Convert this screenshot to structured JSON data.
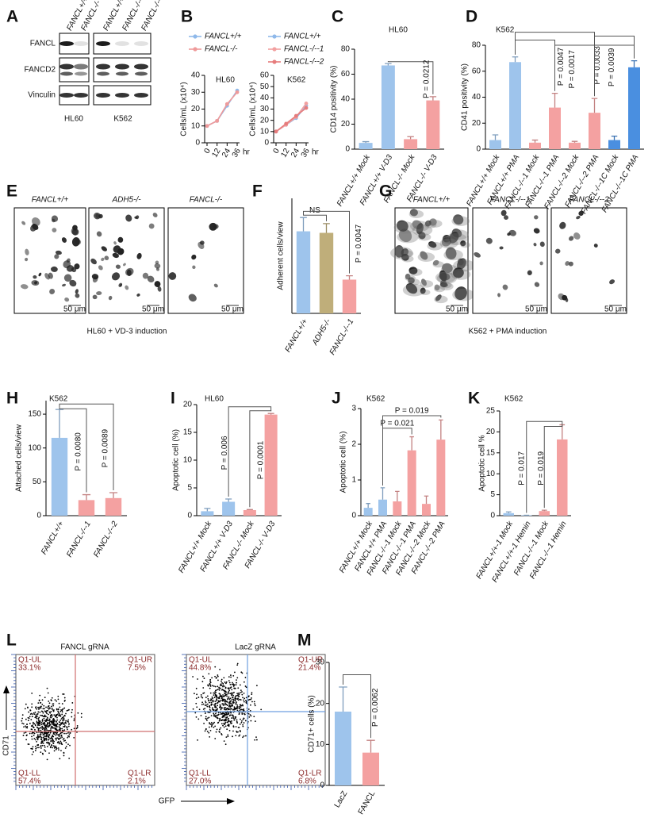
{
  "blot": {
    "label": "A",
    "columns": [
      "FANCL+/+",
      "FANCL-/-",
      "FANCL+/+",
      "FANCL-/--2",
      "FANCL-/--2"
    ],
    "rows": [
      "FANCL",
      "FANCD2",
      "Vinculin"
    ],
    "cell_lines": [
      "HL60",
      "K562"
    ]
  },
  "micrographs": [
    {
      "label": "E",
      "titles": [
        "FANCL+/+",
        "ADH5-/-",
        "FANCL-/-"
      ],
      "scale_bar": "50 μm",
      "caption": "HL60 + VD-3 induction"
    },
    {
      "label": "G",
      "titles": [
        "FANCL+/+",
        "FANCL-/--1",
        "FANCL-/--2"
      ],
      "scale_bar": "50 μm",
      "caption": "K562 + PMA induction"
    }
  ],
  "flow": {
    "label": "L",
    "xlabel": "GFP",
    "ylabel": "CD71",
    "plots": [
      {
        "title": "FANCL gRNA",
        "quadrants": [
          {
            "name": "Q1-UL",
            "value": "33.1%"
          },
          {
            "name": "Q1-UR",
            "value": "7.5%"
          },
          {
            "name": "Q1-LL",
            "value": "57.4%"
          },
          {
            "name": "Q1-LR",
            "value": "2.1%"
          }
        ]
      },
      {
        "title": "LacZ gRNA",
        "quadrants": [
          {
            "name": "Q1-UL",
            "value": "44.8%"
          },
          {
            "name": "Q1-UR",
            "value": "21.4%"
          },
          {
            "name": "Q1-LL",
            "value": "27.0%"
          },
          {
            "name": "Q1-LR",
            "value": "6.8%"
          }
        ]
      }
    ]
  },
  "chart_data": [
    {
      "type": "line",
      "label": "B",
      "title": "HL60",
      "ylabel": "Cells/mL (x10⁴)",
      "xlabel": "hr",
      "x": [
        0,
        12,
        24,
        36
      ],
      "xlim": [
        0,
        36
      ],
      "xticks": [
        0,
        12,
        24,
        36
      ],
      "ylim": [
        0,
        40
      ],
      "yticks": [
        0,
        10,
        20,
        30,
        40
      ],
      "series": [
        {
          "name": "FANCL+/+",
          "color": "#8fb9ea",
          "values": [
            10,
            13,
            22,
            31
          ]
        },
        {
          "name": "FANCL-/-",
          "color": "#ef9a9a",
          "values": [
            10,
            13,
            23,
            30
          ]
        }
      ]
    },
    {
      "type": "line",
      "title": "K562",
      "ylabel": "Cells/mL (x10⁴)",
      "xlabel": "hr",
      "x": [
        0,
        12,
        24,
        36
      ],
      "xlim": [
        0,
        36
      ],
      "xticks": [
        0,
        12,
        24,
        36
      ],
      "ylim": [
        0,
        60
      ],
      "yticks": [
        0,
        10,
        20,
        30,
        40,
        50,
        60
      ],
      "series": [
        {
          "name": "FANCL+/+",
          "color": "#8fb9ea",
          "values": [
            10,
            16,
            22,
            33
          ]
        },
        {
          "name": "FANCL-/--1",
          "color": "#f2a0a0",
          "values": [
            10,
            16,
            23,
            35
          ]
        },
        {
          "name": "FANCL-/--2",
          "color": "#e67c7c",
          "values": [
            10,
            17,
            24,
            31
          ]
        }
      ]
    },
    {
      "type": "bar",
      "label": "C",
      "title": "HL60",
      "ylabel": "CD14 positivity (%)",
      "categories": [
        "FANCL+/+ Mock",
        "FANCL+/+ V-D3",
        "FANCL-/- Mock",
        "FANCL-/- V-D3"
      ],
      "values": [
        5,
        67,
        8,
        39
      ],
      "errors": [
        1,
        1.5,
        2,
        3
      ],
      "colors": [
        "#9ec4ec",
        "#9ec4ec",
        "#f4a1a1",
        "#f4a1a1"
      ],
      "ylim": [
        0,
        80
      ],
      "yticks": [
        0,
        20,
        40,
        60,
        80
      ],
      "annotations": [
        "P = 0.0212"
      ]
    },
    {
      "type": "bar",
      "label": "D",
      "title": "K562",
      "ylabel": "CD41 positivity (%)",
      "categories": [
        "FANCL+/+ Mock",
        "FANCL+/+ PMA",
        "FANCL-/--1 Mock",
        "FANCL-/--1 PMA",
        "FANCL-/--2 Mock",
        "FANCL-/--2 PMA",
        "FANCL-/--1C Mock",
        "FANCL-/--1C PMA"
      ],
      "values": [
        7,
        67,
        5,
        32,
        5,
        28,
        7,
        63
      ],
      "errors": [
        4,
        4,
        2,
        11,
        1,
        11,
        3,
        5
      ],
      "colors": [
        "#9ec4ec",
        "#9ec4ec",
        "#f4a1a1",
        "#f4a1a1",
        "#f4a1a1",
        "#f4a1a1",
        "#4a8fe0",
        "#4a8fe0"
      ],
      "ylim": [
        0,
        80
      ],
      "yticks": [
        0,
        20,
        40,
        60,
        80
      ],
      "annotations": [
        "P = 0.0047",
        "P = 0.0017",
        "P = 0.0033",
        "P = 0.0039"
      ]
    },
    {
      "type": "bar",
      "label": "F",
      "ylabel": "Adherent cells/view",
      "categories": [
        "FANCL+/+",
        "ADH5-/-",
        "FANCL-/--1"
      ],
      "values": [
        107,
        105,
        44
      ],
      "errors": [
        18,
        12,
        5
      ],
      "colors": [
        "#9ec4ec",
        "#bfae7a",
        "#f4a1a1"
      ],
      "ylim": [
        0,
        150
      ],
      "annotations": [
        "NS",
        "P = 0.0047"
      ]
    },
    {
      "type": "bar",
      "label": "H",
      "title": "K562",
      "ylabel": "Attached cells/view",
      "categories": [
        "FANCL+/+",
        "FANCL-/--1",
        "FANCL-/--2"
      ],
      "values": [
        115,
        23,
        26
      ],
      "errors": [
        42,
        8,
        8
      ],
      "colors": [
        "#9ec4ec",
        "#f4a1a1",
        "#f4a1a1"
      ],
      "ylim": [
        0,
        170
      ],
      "yticks": [
        0,
        50,
        100,
        150
      ],
      "annotations": [
        "P = 0.0080",
        "P = 0.0089"
      ]
    },
    {
      "type": "bar",
      "label": "I",
      "title": "HL60",
      "ylabel": "Apoptotic cell (%)",
      "categories": [
        "FANCL+/+ Mock",
        "FANCL+/+ V-D3",
        "FANCL-/- Mock",
        "FANCL-/- V-D3"
      ],
      "values": [
        0.8,
        2.5,
        1.0,
        18.2
      ],
      "errors": [
        0.5,
        0.5,
        0.1,
        0.2
      ],
      "colors": [
        "#9ec4ec",
        "#9ec4ec",
        "#f4a1a1",
        "#f4a1a1"
      ],
      "ylim": [
        0,
        20
      ],
      "yticks": [
        0,
        5,
        10,
        15,
        20
      ],
      "annotations": [
        "P = 0.006",
        "P = 0.0001"
      ]
    },
    {
      "type": "bar",
      "label": "J",
      "title": "K562",
      "ylabel": "Apoptotic cell (%)",
      "categories": [
        "FANCL+/+ Mock",
        "FANCL+/+ PMA",
        "FANCL-/--1 Mock",
        "FANCL-/--1 PMA",
        "FANCL-/--2 Mock",
        "FANCL-/--2 PMA"
      ],
      "values": [
        0.22,
        0.45,
        0.4,
        1.83,
        0.33,
        2.13
      ],
      "errors": [
        0.12,
        0.33,
        0.28,
        0.38,
        0.22,
        0.55
      ],
      "colors": [
        "#9ec4ec",
        "#9ec4ec",
        "#f4a1a1",
        "#f4a1a1",
        "#f4a1a1",
        "#f4a1a1"
      ],
      "ylim": [
        0,
        3
      ],
      "yticks": [
        0,
        1,
        2,
        3
      ],
      "annotations": [
        "P = 0.021",
        "P = 0.019"
      ]
    },
    {
      "type": "bar",
      "label": "K",
      "title": "K562",
      "ylabel": "Apoptotic cell %",
      "categories": [
        "FANCL+/+-1 Mock",
        "FANCL+/+-1 Hemin",
        "FANCL-/--1 Mock",
        "FANCL-/--1 Hemin"
      ],
      "values": [
        0.6,
        0.1,
        1.1,
        18.2
      ],
      "errors": [
        0.3,
        0,
        0.2,
        3.5
      ],
      "colors": [
        "#9ec4ec",
        "#9ec4ec",
        "#f4a1a1",
        "#f4a1a1"
      ],
      "ylim": [
        0,
        25
      ],
      "yticks": [
        0,
        5,
        10,
        15,
        20,
        25
      ],
      "annotations": [
        "P = 0.017",
        "P = 0.019"
      ]
    },
    {
      "type": "bar",
      "label": "M",
      "ylabel": "CD71+ cells (%)",
      "categories": [
        "LacZ",
        "FANCL"
      ],
      "values": [
        18,
        8
      ],
      "errors": [
        6,
        3
      ],
      "colors": [
        "#9ec4ec",
        "#f4a1a1"
      ],
      "ylim": [
        0,
        30
      ],
      "yticks": [
        0,
        10,
        20,
        30
      ],
      "annotations": [
        "P = 0.0062"
      ]
    }
  ]
}
